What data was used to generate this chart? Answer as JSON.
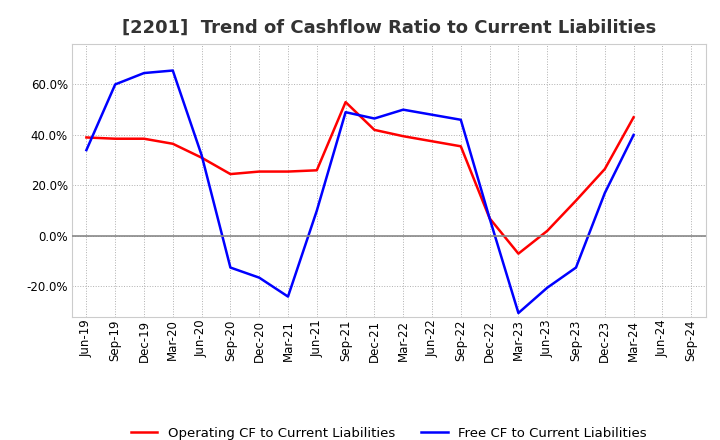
{
  "title": "[2201]  Trend of Cashflow Ratio to Current Liabilities",
  "x_labels": [
    "Jun-19",
    "Sep-19",
    "Dec-19",
    "Mar-20",
    "Jun-20",
    "Sep-20",
    "Dec-20",
    "Mar-21",
    "Jun-21",
    "Sep-21",
    "Dec-21",
    "Mar-22",
    "Jun-22",
    "Sep-22",
    "Dec-22",
    "Mar-23",
    "Jun-23",
    "Sep-23",
    "Dec-23",
    "Mar-24",
    "Jun-24",
    "Sep-24"
  ],
  "operating_cf": [
    0.39,
    0.385,
    0.385,
    0.365,
    0.31,
    0.245,
    0.255,
    0.255,
    0.26,
    0.53,
    0.42,
    0.395,
    0.375,
    0.355,
    0.07,
    -0.07,
    0.02,
    0.14,
    0.265,
    0.47,
    null,
    null
  ],
  "free_cf": [
    0.34,
    0.6,
    0.645,
    0.655,
    0.32,
    -0.125,
    -0.165,
    -0.24,
    0.1,
    0.49,
    0.465,
    0.5,
    0.48,
    0.46,
    0.07,
    -0.305,
    -0.205,
    -0.125,
    0.17,
    0.4,
    null,
    null
  ],
  "operating_color": "#ff0000",
  "free_color": "#0000ff",
  "ylim": [
    -0.32,
    0.76
  ],
  "yticks": [
    -0.2,
    0.0,
    0.2,
    0.4,
    0.6
  ],
  "legend_labels": [
    "Operating CF to Current Liabilities",
    "Free CF to Current Liabilities"
  ],
  "bg_color": "#ffffff",
  "grid_color": "#b0b0b0",
  "title_fontsize": 13,
  "axis_fontsize": 8.5,
  "legend_fontsize": 9.5
}
